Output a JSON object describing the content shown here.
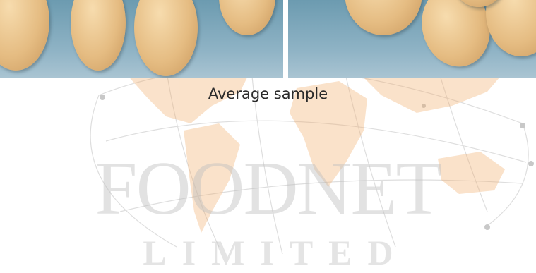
{
  "caption": "Average sample",
  "logo": {
    "name": "FOODNET",
    "subname": "LIMITED"
  },
  "colors": {
    "map_land": "#f2ad6a",
    "map_lines": "#c9c9c9",
    "photo_background": "#8fb3c5",
    "bean": "#e5bc82",
    "caption_text": "#2b2b2b"
  }
}
